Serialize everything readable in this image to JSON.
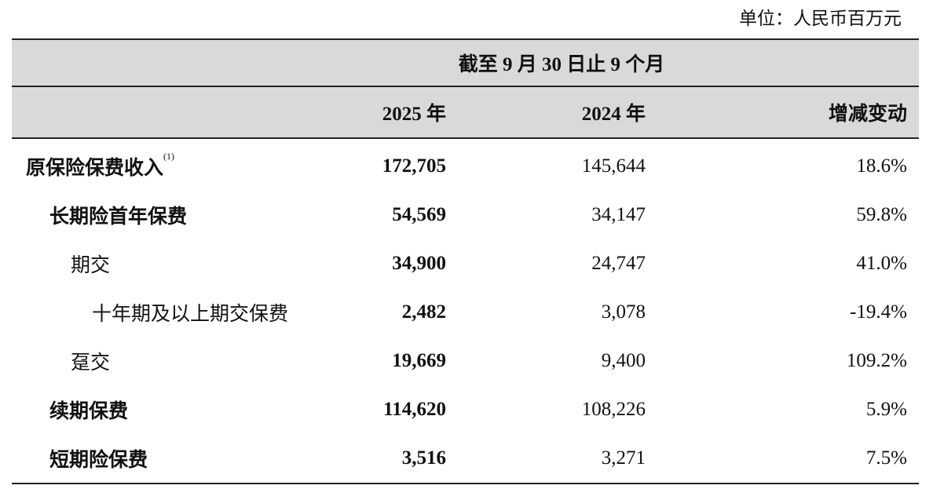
{
  "unit": "单位：人民币百万元",
  "header": {
    "period": "截至 9 月 30 日止 9 个月",
    "col_2025": "2025 年",
    "col_2024": "2024 年",
    "col_change": "增减变动"
  },
  "rows": [
    {
      "label": "原保险保费收入",
      "note": "(1)",
      "v2025": "172,705",
      "v2024": "145,644",
      "change": "18.6%"
    },
    {
      "label": "长期险首年保费",
      "v2025": "54,569",
      "v2024": "34,147",
      "change": "59.8%"
    },
    {
      "label": "期交",
      "v2025": "34,900",
      "v2024": "24,747",
      "change": "41.0%"
    },
    {
      "label": "十年期及以上期交保费",
      "v2025": "2,482",
      "v2024": "3,078",
      "change": "-19.4%"
    },
    {
      "label": "趸交",
      "v2025": "19,669",
      "v2024": "9,400",
      "change": "109.2%"
    },
    {
      "label": "续期保费",
      "v2025": "114,620",
      "v2024": "108,226",
      "change": "5.9%"
    },
    {
      "label": "短期险保费",
      "v2025": "3,516",
      "v2024": "3,271",
      "change": "7.5%"
    }
  ]
}
